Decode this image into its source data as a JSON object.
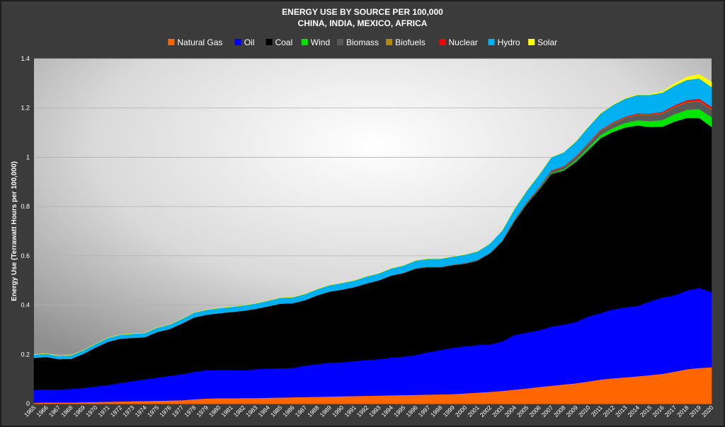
{
  "chart_data": {
    "type": "area",
    "stacked": true,
    "title": "ENERGY USE BY SOURCE PER 100,000",
    "subtitle": "CHINA, INDIA, MEXICO, AFRICA",
    "xlabel": "",
    "ylabel": "Energy Use (Terrawatt Hours per 100,000)",
    "ylim": [
      0,
      1.4
    ],
    "yticks": [
      "0",
      "0.2",
      "0.4",
      "0.6",
      "0.8",
      "1",
      "1.2",
      "1.4"
    ],
    "grid": true,
    "legend_position": "top",
    "x": [
      "1965",
      "1966",
      "1967",
      "1968",
      "1969",
      "1970",
      "1971",
      "1972",
      "1973",
      "1974",
      "1975",
      "1976",
      "1977",
      "1978",
      "1979",
      "1980",
      "1981",
      "1982",
      "1983",
      "1984",
      "1985",
      "1986",
      "1987",
      "1988",
      "1989",
      "1990",
      "1991",
      "1992",
      "1993",
      "1994",
      "1995",
      "1996",
      "1997",
      "1998",
      "1999",
      "2000",
      "2001",
      "2002",
      "2003",
      "2004",
      "2005",
      "2006",
      "2007",
      "2008",
      "2009",
      "2010",
      "2011",
      "2012",
      "2013",
      "2014",
      "2015",
      "2016",
      "2017",
      "2018",
      "2019",
      "2020"
    ],
    "series": [
      {
        "name": "Natural Gas",
        "color": "#ff6600",
        "values": [
          0.004,
          0.005,
          0.005,
          0.005,
          0.006,
          0.007,
          0.008,
          0.009,
          0.01,
          0.011,
          0.012,
          0.013,
          0.014,
          0.018,
          0.021,
          0.022,
          0.022,
          0.023,
          0.023,
          0.024,
          0.025,
          0.026,
          0.027,
          0.028,
          0.029,
          0.03,
          0.031,
          0.032,
          0.033,
          0.034,
          0.035,
          0.036,
          0.037,
          0.038,
          0.039,
          0.042,
          0.045,
          0.048,
          0.052,
          0.057,
          0.062,
          0.068,
          0.073,
          0.078,
          0.083,
          0.09,
          0.098,
          0.103,
          0.107,
          0.111,
          0.116,
          0.121,
          0.13,
          0.14,
          0.145,
          0.148
        ]
      },
      {
        "name": "Oil",
        "color": "#0000ff",
        "values": [
          0.052,
          0.053,
          0.053,
          0.055,
          0.058,
          0.063,
          0.068,
          0.075,
          0.082,
          0.088,
          0.094,
          0.1,
          0.106,
          0.111,
          0.115,
          0.115,
          0.115,
          0.113,
          0.117,
          0.119,
          0.119,
          0.119,
          0.128,
          0.132,
          0.138,
          0.138,
          0.142,
          0.145,
          0.148,
          0.153,
          0.156,
          0.162,
          0.172,
          0.18,
          0.188,
          0.191,
          0.193,
          0.193,
          0.2,
          0.222,
          0.227,
          0.23,
          0.24,
          0.243,
          0.249,
          0.264,
          0.27,
          0.28,
          0.284,
          0.286,
          0.299,
          0.31,
          0.31,
          0.32,
          0.325,
          0.305
        ]
      },
      {
        "name": "Coal",
        "color": "#000000",
        "values": [
          0.13,
          0.132,
          0.123,
          0.122,
          0.138,
          0.158,
          0.175,
          0.18,
          0.175,
          0.171,
          0.185,
          0.19,
          0.205,
          0.221,
          0.225,
          0.23,
          0.235,
          0.241,
          0.245,
          0.252,
          0.262,
          0.263,
          0.265,
          0.28,
          0.288,
          0.295,
          0.3,
          0.311,
          0.32,
          0.333,
          0.339,
          0.35,
          0.345,
          0.335,
          0.335,
          0.335,
          0.342,
          0.368,
          0.405,
          0.46,
          0.52,
          0.57,
          0.62,
          0.625,
          0.65,
          0.676,
          0.71,
          0.72,
          0.73,
          0.732,
          0.708,
          0.693,
          0.705,
          0.7,
          0.69,
          0.67
        ]
      },
      {
        "name": "Wind",
        "color": "#00e600",
        "values": [
          0,
          0,
          0,
          0,
          0,
          0,
          0,
          0,
          0,
          0,
          0,
          0,
          0,
          0,
          0,
          0,
          0,
          0,
          0,
          0,
          0,
          0,
          0,
          0,
          0,
          0,
          0,
          0,
          0,
          0,
          0,
          0,
          0,
          0,
          0,
          0,
          0,
          0,
          0,
          0.001,
          0.001,
          0.002,
          0.003,
          0.005,
          0.007,
          0.01,
          0.013,
          0.016,
          0.019,
          0.021,
          0.024,
          0.027,
          0.03,
          0.033,
          0.036,
          0.04
        ]
      },
      {
        "name": "Biomass",
        "color": "#595959",
        "values": [
          0,
          0,
          0,
          0,
          0,
          0,
          0,
          0,
          0,
          0,
          0,
          0,
          0,
          0,
          0,
          0,
          0,
          0,
          0,
          0,
          0,
          0,
          0,
          0,
          0,
          0,
          0,
          0,
          0,
          0,
          0,
          0.001,
          0.001,
          0.001,
          0.001,
          0.002,
          0.002,
          0.002,
          0.003,
          0.004,
          0.005,
          0.006,
          0.008,
          0.01,
          0.012,
          0.014,
          0.016,
          0.018,
          0.02,
          0.022,
          0.024,
          0.026,
          0.028,
          0.03,
          0.031,
          0.032
        ]
      },
      {
        "name": "Biofuels",
        "color": "#b8860b",
        "values": [
          0,
          0,
          0,
          0,
          0,
          0,
          0,
          0,
          0,
          0,
          0,
          0,
          0,
          0,
          0,
          0,
          0,
          0,
          0,
          0,
          0,
          0,
          0,
          0,
          0,
          0,
          0,
          0,
          0,
          0,
          0,
          0,
          0,
          0,
          0,
          0,
          0,
          0,
          0,
          0.001,
          0.001,
          0.001,
          0.001,
          0.001,
          0.001,
          0.002,
          0.002,
          0.002,
          0.002,
          0.002,
          0.002,
          0.002,
          0.002,
          0.002,
          0.002,
          0.002
        ]
      },
      {
        "name": "Nuclear",
        "color": "#ff0000",
        "values": [
          0,
          0,
          0,
          0,
          0,
          0,
          0,
          0,
          0,
          0,
          0,
          0,
          0,
          0,
          0,
          0,
          0,
          0,
          0,
          0,
          0,
          0,
          0,
          0,
          0,
          0,
          0,
          0,
          0,
          0,
          0.001,
          0.001,
          0.001,
          0.001,
          0.001,
          0.001,
          0.001,
          0.001,
          0.002,
          0.002,
          0.002,
          0.002,
          0.002,
          0.002,
          0.002,
          0.003,
          0.003,
          0.003,
          0.003,
          0.004,
          0.004,
          0.005,
          0.006,
          0.007,
          0.008,
          0.008
        ]
      },
      {
        "name": "Hydro",
        "color": "#00b0f0",
        "values": [
          0.013,
          0.013,
          0.013,
          0.014,
          0.015,
          0.015,
          0.016,
          0.016,
          0.017,
          0.017,
          0.018,
          0.018,
          0.019,
          0.02,
          0.02,
          0.021,
          0.021,
          0.022,
          0.022,
          0.023,
          0.024,
          0.024,
          0.025,
          0.025,
          0.026,
          0.027,
          0.027,
          0.028,
          0.028,
          0.029,
          0.03,
          0.031,
          0.032,
          0.033,
          0.033,
          0.034,
          0.035,
          0.037,
          0.04,
          0.043,
          0.046,
          0.05,
          0.053,
          0.056,
          0.06,
          0.064,
          0.066,
          0.07,
          0.073,
          0.075,
          0.076,
          0.078,
          0.08,
          0.082,
          0.083,
          0.08
        ]
      },
      {
        "name": "Solar",
        "color": "#ffff00",
        "values": [
          0,
          0,
          0,
          0,
          0,
          0,
          0,
          0,
          0,
          0,
          0,
          0,
          0,
          0,
          0,
          0,
          0,
          0,
          0,
          0,
          0,
          0,
          0,
          0,
          0,
          0,
          0,
          0,
          0,
          0,
          0,
          0,
          0,
          0,
          0,
          0,
          0,
          0,
          0,
          0,
          0,
          0,
          0,
          0,
          0,
          0.001,
          0.001,
          0.001,
          0.002,
          0.002,
          0.003,
          0.005,
          0.008,
          0.012,
          0.016,
          0.02
        ]
      }
    ]
  }
}
